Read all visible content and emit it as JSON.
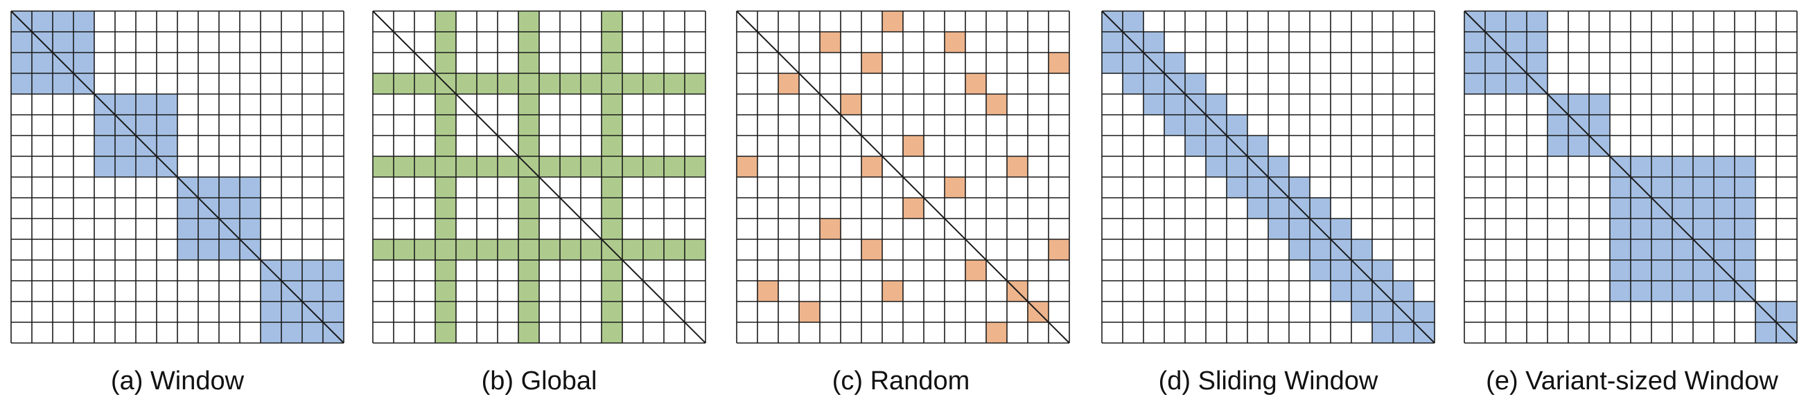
{
  "grid_size": 16,
  "colors": {
    "grid_line": "#1a1a1a",
    "window": "#a4bfe3",
    "global": "#aecb8d",
    "random": "#eeb48c",
    "background": "#ffffff"
  },
  "panels": [
    {
      "id": "window",
      "caption": "(a) Window",
      "fill": "window",
      "blocks": [
        [
          0,
          3
        ],
        [
          4,
          7
        ],
        [
          8,
          11
        ],
        [
          12,
          15
        ]
      ]
    },
    {
      "id": "global",
      "caption": "(b) Global",
      "fill": "global",
      "global_indices": [
        3,
        7,
        11
      ]
    },
    {
      "id": "random",
      "caption": "(c) Random",
      "fill": "random",
      "cells": [
        [
          0,
          7
        ],
        [
          1,
          4
        ],
        [
          1,
          10
        ],
        [
          2,
          6
        ],
        [
          2,
          15
        ],
        [
          3,
          2
        ],
        [
          3,
          11
        ],
        [
          4,
          5
        ],
        [
          4,
          12
        ],
        [
          6,
          8
        ],
        [
          7,
          0
        ],
        [
          7,
          6
        ],
        [
          7,
          13
        ],
        [
          8,
          10
        ],
        [
          9,
          8
        ],
        [
          10,
          4
        ],
        [
          11,
          6
        ],
        [
          11,
          15
        ],
        [
          12,
          11
        ],
        [
          13,
          1
        ],
        [
          13,
          7
        ],
        [
          13,
          13
        ],
        [
          14,
          3
        ],
        [
          14,
          14
        ],
        [
          15,
          12
        ]
      ]
    },
    {
      "id": "sliding",
      "caption": "(d) Sliding Window",
      "fill": "window",
      "band_below": 2,
      "band_above": 1
    },
    {
      "id": "variant",
      "caption": "(e) Variant-sized Window",
      "fill": "window",
      "blocks": [
        [
          0,
          3
        ],
        [
          4,
          6
        ],
        [
          7,
          13
        ],
        [
          14,
          15
        ]
      ]
    }
  ]
}
